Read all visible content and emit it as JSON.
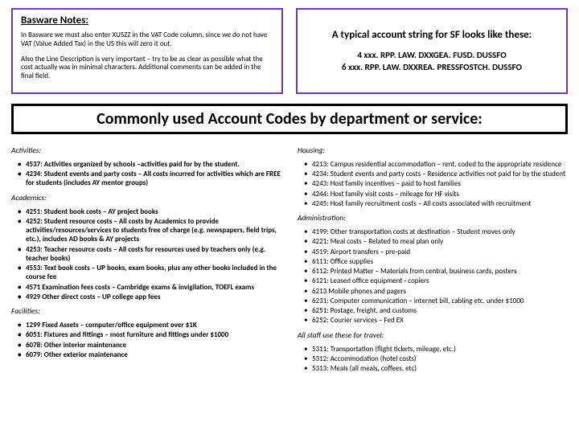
{
  "topLeft": {
    "title": "Basware Notes:",
    "p1": "In Basware we must also enter XUSZZ in the VAT Code column, since we do not have VAT (Value Added Tax) in the US this will zero it out.",
    "p2": "Also the Line Description is very important – try to be as clear as possible what the cost actually was in minimal characters. Additional comments can be added in the final field."
  },
  "topRight": {
    "title": "A typical account string for SF looks like these:",
    "line1": "4 xxx. RPP. LAW. DXXGEA. FUSD. DUSSFO",
    "line2": "6 xxx. RPP. LAW. DXXREA. PRESSFOSTCH. DUSSFO"
  },
  "header": "Commonly used Account Codes by department or service:",
  "left": {
    "activities": {
      "title": "Activities:",
      "items": [
        "4537: Activities organized by schools –activities paid for by the student.",
        "4234: Student events and party costs – All costs incurred for activities which are FREE for students (includes AY mentor groups)"
      ]
    },
    "academics": {
      "title": "Academics:",
      "items": [
        "4251: Student book costs – AY project books",
        "4252: Student resource costs – All costs by Academics to provide activities/resources/services to students free of charge (e.g. newspapers, field trips, etc.), includes AD books & AY projects",
        "4253: Teacher resource costs – All costs for resources used by teachers only (e.g. teacher books)",
        "4553: Text book costs – UP books, exam books, plus any other books included in the course fee",
        "4571 Examination fees costs – Cambridge exams & invigilation, TOEFL exams",
        "4929 Other direct costs – UP college app fees"
      ]
    },
    "facilities": {
      "title": "Facilities:",
      "items": [
        "1299 Fixed Assets – computer/office equipment over $1K",
        "6051: Fixtures and fittings – most furniture and fittings under $1000",
        "6078: Other interior maintenance",
        "6079: Other exterior maintenance"
      ]
    }
  },
  "right": {
    "housing": {
      "title": "Housing:",
      "items": [
        "4213: Campus residential accommodation – rent, coded to the appropriate residence",
        "4234: Student events and party costs – Residence activities not paid for by the student",
        "4243: Host family incentives – paid to host families",
        "4244: Host family visit costs – mileage for HF visits",
        "4245: Host family recruitment costs – All costs associated with recruitment"
      ]
    },
    "admin": {
      "title": "Administration:",
      "items": [
        "4199: Other transportation costs at destination – Student moves only",
        "4221: Meal costs – Related to meal plan only",
        "4519: Airport transfers – pre-paid",
        "6111: Office supplies",
        "6112: Printed Matter – Materials from central, business cards, posters",
        "6121: Leased office equipment - copiers",
        "6213 Mobile phones and pagers",
        "6231: Computer communication – internet bill, cabling etc. under $1000",
        "6251: Postage, freight, and customs",
        "6252: Courier services – Fed EX"
      ]
    },
    "travel": {
      "title": "All staff use these for travel:",
      "items": [
        "5311: Transportation (flight tickets, mileage, etc.)",
        "5312: Accommodation (hotel costs)",
        "5313: Meals (all meals, coffees, etc)"
      ]
    }
  }
}
